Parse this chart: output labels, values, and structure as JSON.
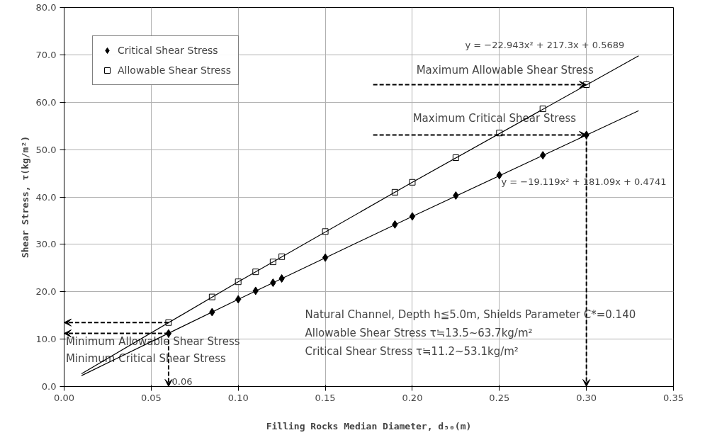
{
  "chart_data": {
    "type": "scatter",
    "xlabel": "Filling Rocks Median Diameter, d₅₀(m)",
    "ylabel": "Shear Stress, τ(kg/m²)",
    "xlim": [
      0,
      0.35
    ],
    "ylim": [
      0,
      80
    ],
    "xticks": [
      {
        "value": 0,
        "label": "0.00"
      },
      {
        "value": 0.05,
        "label": "0.05"
      },
      {
        "value": 0.1,
        "label": "0.10"
      },
      {
        "value": 0.15,
        "label": "0.15"
      },
      {
        "value": 0.2,
        "label": "0.20"
      },
      {
        "value": 0.25,
        "label": "0.25"
      },
      {
        "value": 0.3,
        "label": "0.30"
      },
      {
        "value": 0.35,
        "label": "0.35"
      }
    ],
    "yticks": [
      {
        "value": 0,
        "label": "0.0"
      },
      {
        "value": 10,
        "label": "10.0"
      },
      {
        "value": 20,
        "label": "20.0"
      },
      {
        "value": 30,
        "label": "30.0"
      },
      {
        "value": 40,
        "label": "40.0"
      },
      {
        "value": 50,
        "label": "50.0"
      },
      {
        "value": 60,
        "label": "60.0"
      },
      {
        "value": 70,
        "label": "70.0"
      },
      {
        "value": 80,
        "label": "80.0"
      }
    ],
    "grid": true,
    "legend": "top left",
    "series": [
      {
        "name": "Critical Shear Stress",
        "color": "#000000",
        "marker": "diamond",
        "x": [
          0.06,
          0.085,
          0.1,
          0.11,
          0.12,
          0.125,
          0.15,
          0.19,
          0.2,
          0.225,
          0.25,
          0.275,
          0.3
        ],
        "values": [
          11.2,
          15.7,
          18.4,
          20.2,
          21.9,
          22.8,
          27.2,
          34.2,
          35.9,
          40.3,
          44.6,
          48.8,
          53.1
        ]
      },
      {
        "name": "Allowable Shear Stress",
        "color": "#000000",
        "marker": "square",
        "x": [
          0.06,
          0.085,
          0.1,
          0.11,
          0.12,
          0.125,
          0.15,
          0.19,
          0.2,
          0.225,
          0.25,
          0.275,
          0.3
        ],
        "values": [
          13.5,
          18.9,
          22.1,
          24.2,
          26.3,
          27.4,
          32.7,
          41.0,
          43.1,
          48.3,
          53.5,
          58.6,
          63.7
        ]
      },
      {
        "type": "line",
        "color": "#000000",
        "x": [
          0.01,
          0.1,
          0.2,
          0.33
        ],
        "values": [
          2.3,
          18.4,
          35.9,
          58.2
        ]
      },
      {
        "type": "line",
        "color": "#000000",
        "x": [
          0.01,
          0.1,
          0.2,
          0.33
        ],
        "values": [
          2.7,
          22.1,
          43.1,
          69.8
        ]
      }
    ],
    "annotations": [
      {
        "text": "Minimum Allowable Shear Stress",
        "x": 0.06,
        "y": 13.5
      },
      {
        "text": "Minimum Critical Shear Stress",
        "x": 0.06,
        "y": 11.2
      },
      {
        "text": "Maximum Allowable Shear Stress",
        "x": 0.3,
        "y": 63.7
      },
      {
        "text": "Maximum Critical Shear Stress",
        "x": 0.3,
        "y": 53.1
      },
      "0.06",
      {
        "text": "y = −22.943x² + 217.3x + 0.5689",
        "x": 0.33,
        "y": 69.8
      },
      "y = −19.119x² + 181.09x + 0.4741",
      "Natural Channel, Depth h≦5.0m, Shields Parameter C*=0.140",
      "Allowable Shear Stress      τ≒13.5~63.7kg/m²",
      "Critical Shear Stress         τ≒11.2~53.1kg/m²"
    ]
  }
}
